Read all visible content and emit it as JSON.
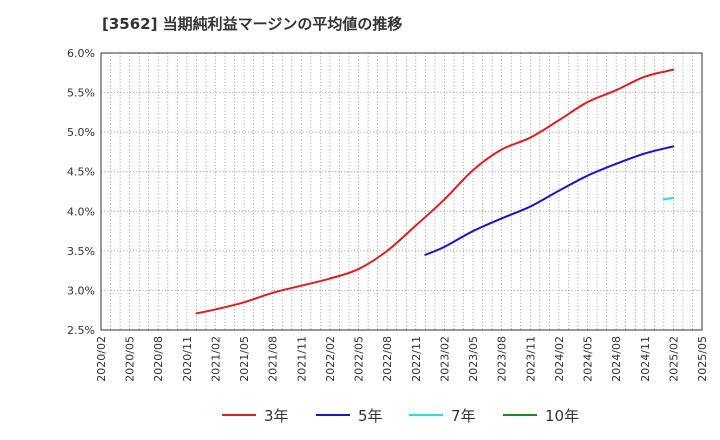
{
  "chart_data": {
    "type": "line",
    "title": "[3562]  当期純利益マージンの平均値の推移",
    "xlabel": "",
    "ylabel": "",
    "ylim": [
      2.5,
      6.0
    ],
    "y_ticks": [
      "2.5%",
      "3.0%",
      "3.5%",
      "4.0%",
      "4.5%",
      "5.0%",
      "5.5%",
      "6.0%"
    ],
    "x_ticks": [
      "2020/02",
      "2020/05",
      "2020/08",
      "2020/11",
      "2021/02",
      "2021/05",
      "2021/08",
      "2021/11",
      "2022/02",
      "2022/05",
      "2022/08",
      "2022/11",
      "2023/02",
      "2023/05",
      "2023/08",
      "2023/11",
      "2024/02",
      "2024/05",
      "2024/08",
      "2024/11",
      "2025/02",
      "2025/05"
    ],
    "grid": true,
    "legend_position": "bottom",
    "series": [
      {
        "name": "3年",
        "color": "#dd1f1f",
        "points": [
          [
            "2020/12",
            2.71
          ],
          [
            "2021/02",
            2.76
          ],
          [
            "2021/05",
            2.85
          ],
          [
            "2021/08",
            2.97
          ],
          [
            "2021/11",
            3.06
          ],
          [
            "2022/02",
            3.15
          ],
          [
            "2022/05",
            3.27
          ],
          [
            "2022/08",
            3.5
          ],
          [
            "2022/11",
            3.82
          ],
          [
            "2023/02",
            4.15
          ],
          [
            "2023/05",
            4.52
          ],
          [
            "2023/08",
            4.78
          ],
          [
            "2023/11",
            4.93
          ],
          [
            "2024/02",
            5.15
          ],
          [
            "2024/05",
            5.38
          ],
          [
            "2024/08",
            5.53
          ],
          [
            "2024/11",
            5.7
          ],
          [
            "2025/02",
            5.79
          ]
        ]
      },
      {
        "name": "5年",
        "color": "#1717cc",
        "points": [
          [
            "2022/12",
            3.45
          ],
          [
            "2023/02",
            3.55
          ],
          [
            "2023/05",
            3.75
          ],
          [
            "2023/08",
            3.91
          ],
          [
            "2023/11",
            4.06
          ],
          [
            "2024/02",
            4.26
          ],
          [
            "2024/05",
            4.45
          ],
          [
            "2024/08",
            4.6
          ],
          [
            "2024/11",
            4.73
          ],
          [
            "2025/02",
            4.82
          ]
        ]
      },
      {
        "name": "7年",
        "color": "#22e0e8",
        "points": [
          [
            "2025/01",
            4.15
          ],
          [
            "2025/02",
            4.17
          ]
        ]
      },
      {
        "name": "10年",
        "color": "#1f8a1f",
        "points": []
      }
    ]
  }
}
